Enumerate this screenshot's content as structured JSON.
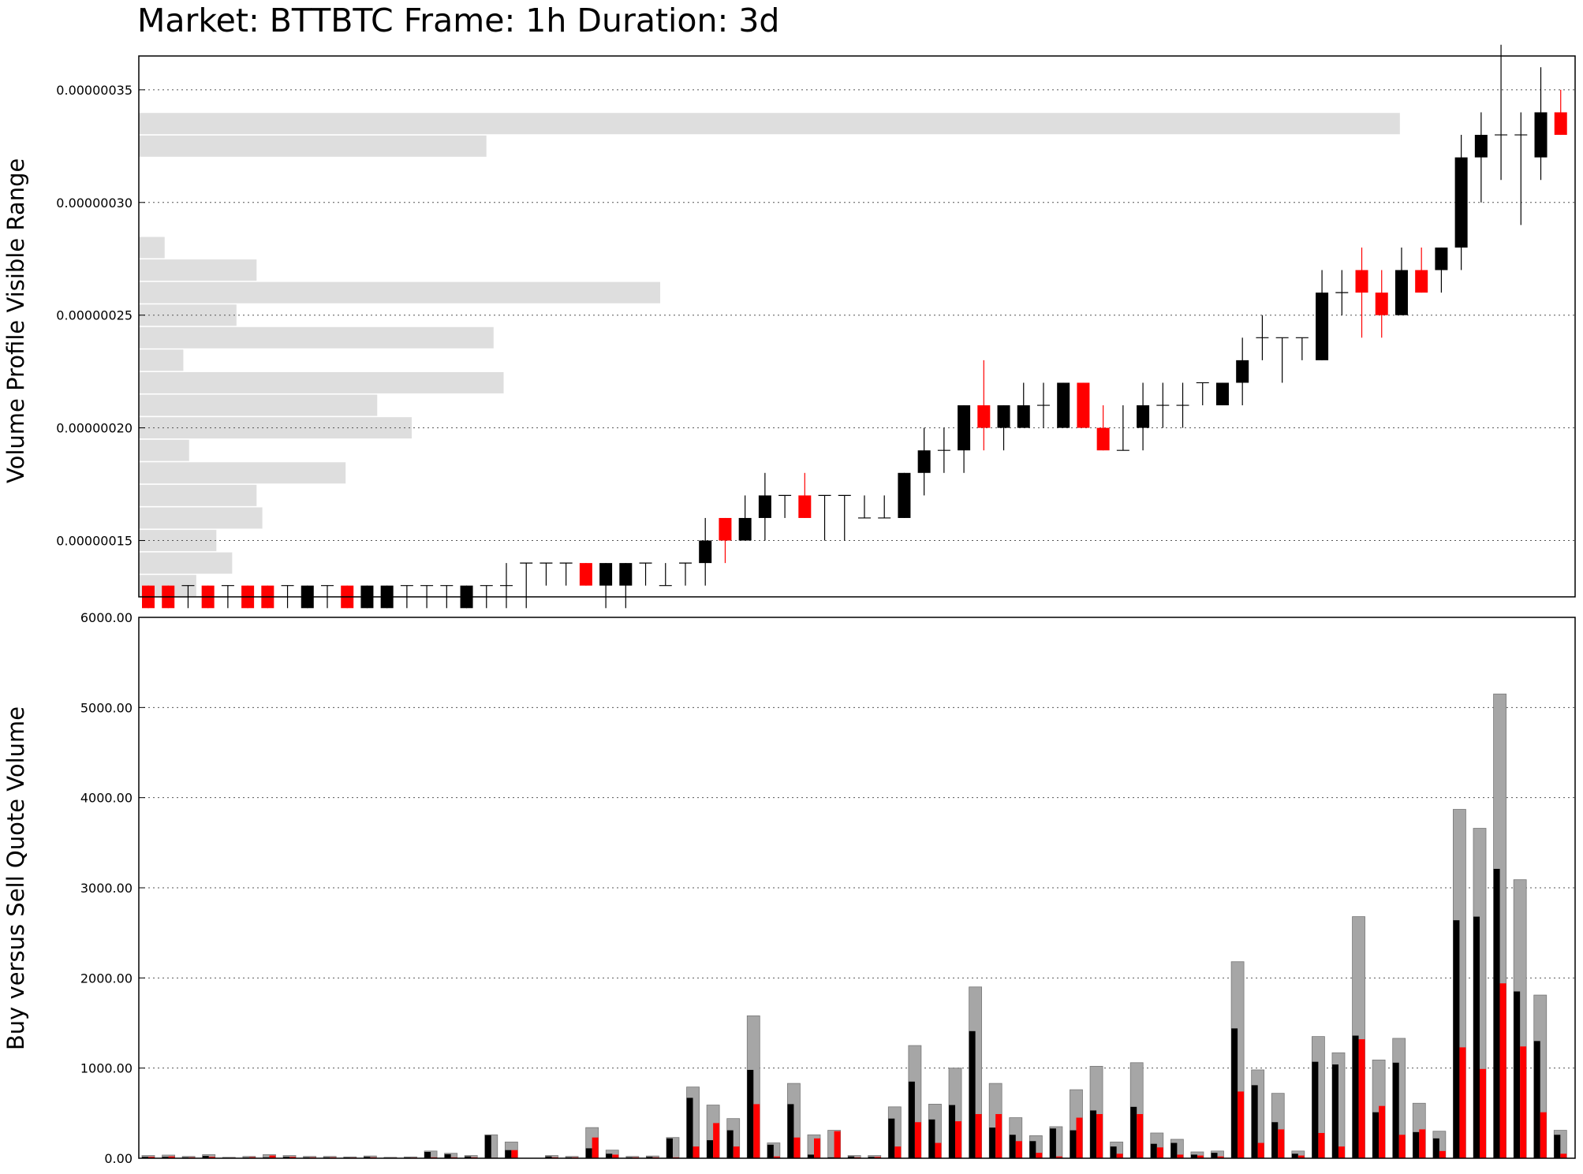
{
  "chart_data": [
    {
      "type": "candlestick",
      "title": "Market: BTTBTC Frame: 1h Duration: 3d",
      "ylabel": "Volume Profile Visible Range",
      "ylim": [
        1.25e-07,
        3.65e-07
      ],
      "yticks": [
        1.5e-07,
        2e-07,
        2.5e-07,
        3e-07,
        3.5e-07
      ],
      "ytick_labels": [
        "0.00000015",
        "0.00000020",
        "0.00000025",
        "0.00000030",
        "0.00000035"
      ],
      "grid": true,
      "candles": [
        {
          "o": 13,
          "h": 13,
          "l": 12,
          "c": 12
        },
        {
          "o": 13,
          "h": 13,
          "l": 12,
          "c": 12
        },
        {
          "o": 13,
          "h": 13,
          "l": 12,
          "c": 13
        },
        {
          "o": 13,
          "h": 13,
          "l": 12,
          "c": 12
        },
        {
          "o": 13,
          "h": 13,
          "l": 12,
          "c": 13
        },
        {
          "o": 13,
          "h": 13,
          "l": 12,
          "c": 12
        },
        {
          "o": 13,
          "h": 13,
          "l": 12,
          "c": 12
        },
        {
          "o": 13,
          "h": 13,
          "l": 12,
          "c": 13
        },
        {
          "o": 12,
          "h": 13,
          "l": 12,
          "c": 13
        },
        {
          "o": 13,
          "h": 13,
          "l": 12,
          "c": 13
        },
        {
          "o": 13,
          "h": 13,
          "l": 12,
          "c": 12
        },
        {
          "o": 12,
          "h": 13,
          "l": 12,
          "c": 13
        },
        {
          "o": 12,
          "h": 13,
          "l": 12,
          "c": 13
        },
        {
          "o": 13,
          "h": 13,
          "l": 12,
          "c": 13
        },
        {
          "o": 13,
          "h": 13,
          "l": 12,
          "c": 13
        },
        {
          "o": 13,
          "h": 13,
          "l": 12,
          "c": 13
        },
        {
          "o": 12,
          "h": 13,
          "l": 12,
          "c": 13
        },
        {
          "o": 13,
          "h": 13,
          "l": 12,
          "c": 13
        },
        {
          "o": 13,
          "h": 14,
          "l": 12,
          "c": 13
        },
        {
          "o": 14,
          "h": 14,
          "l": 12,
          "c": 14
        },
        {
          "o": 14,
          "h": 14,
          "l": 13,
          "c": 14
        },
        {
          "o": 14,
          "h": 14,
          "l": 13,
          "c": 14
        },
        {
          "o": 14,
          "h": 14,
          "l": 13,
          "c": 13
        },
        {
          "o": 13,
          "h": 14,
          "l": 12,
          "c": 14
        },
        {
          "o": 13,
          "h": 14,
          "l": 12,
          "c": 14
        },
        {
          "o": 14,
          "h": 14,
          "l": 13,
          "c": 14
        },
        {
          "o": 13,
          "h": 14,
          "l": 13,
          "c": 13
        },
        {
          "o": 14,
          "h": 14,
          "l": 13,
          "c": 14
        },
        {
          "o": 14,
          "h": 16,
          "l": 13,
          "c": 15
        },
        {
          "o": 16,
          "h": 16,
          "l": 14,
          "c": 15
        },
        {
          "o": 15,
          "h": 17,
          "l": 15,
          "c": 16
        },
        {
          "o": 16,
          "h": 18,
          "l": 15,
          "c": 17
        },
        {
          "o": 17,
          "h": 17,
          "l": 16,
          "c": 17
        },
        {
          "o": 17,
          "h": 18,
          "l": 16,
          "c": 16
        },
        {
          "o": 17,
          "h": 17,
          "l": 15,
          "c": 17
        },
        {
          "o": 17,
          "h": 17,
          "l": 15,
          "c": 17
        },
        {
          "o": 16,
          "h": 17,
          "l": 16,
          "c": 16
        },
        {
          "o": 16,
          "h": 17,
          "l": 16,
          "c": 16
        },
        {
          "o": 16,
          "h": 18,
          "l": 16,
          "c": 18
        },
        {
          "o": 18,
          "h": 20,
          "l": 17,
          "c": 19
        },
        {
          "o": 19,
          "h": 20,
          "l": 18,
          "c": 19
        },
        {
          "o": 19,
          "h": 21,
          "l": 18,
          "c": 21
        },
        {
          "o": 21,
          "h": 23,
          "l": 19,
          "c": 20
        },
        {
          "o": 20,
          "h": 21,
          "l": 19,
          "c": 21
        },
        {
          "o": 20,
          "h": 22,
          "l": 20,
          "c": 21
        },
        {
          "o": 21,
          "h": 22,
          "l": 20,
          "c": 21
        },
        {
          "o": 20,
          "h": 22,
          "l": 20,
          "c": 22
        },
        {
          "o": 22,
          "h": 22,
          "l": 20,
          "c": 20
        },
        {
          "o": 20,
          "h": 21,
          "l": 19,
          "c": 19
        },
        {
          "o": 19,
          "h": 21,
          "l": 19,
          "c": 19
        },
        {
          "o": 20,
          "h": 22,
          "l": 19,
          "c": 21
        },
        {
          "o": 21,
          "h": 22,
          "l": 20,
          "c": 21
        },
        {
          "o": 21,
          "h": 22,
          "l": 20,
          "c": 21
        },
        {
          "o": 22,
          "h": 22,
          "l": 21,
          "c": 22
        },
        {
          "o": 21,
          "h": 22,
          "l": 21,
          "c": 22
        },
        {
          "o": 22,
          "h": 24,
          "l": 21,
          "c": 23
        },
        {
          "o": 24,
          "h": 25,
          "l": 23,
          "c": 24
        },
        {
          "o": 24,
          "h": 24,
          "l": 22,
          "c": 24
        },
        {
          "o": 24,
          "h": 24,
          "l": 23,
          "c": 24
        },
        {
          "o": 23,
          "h": 27,
          "l": 23,
          "c": 26
        },
        {
          "o": 26,
          "h": 27,
          "l": 25,
          "c": 26
        },
        {
          "o": 27,
          "h": 28,
          "l": 24,
          "c": 26
        },
        {
          "o": 26,
          "h": 27,
          "l": 24,
          "c": 25
        },
        {
          "o": 25,
          "h": 28,
          "l": 25,
          "c": 27
        },
        {
          "o": 27,
          "h": 28,
          "l": 26,
          "c": 26
        },
        {
          "o": 27,
          "h": 28,
          "l": 26,
          "c": 28
        },
        {
          "o": 28,
          "h": 33,
          "l": 27,
          "c": 32
        },
        {
          "o": 32,
          "h": 34,
          "l": 30,
          "c": 33
        },
        {
          "o": 33,
          "h": 37,
          "l": 31,
          "c": 33
        },
        {
          "o": 33,
          "h": 34,
          "l": 29,
          "c": 33
        },
        {
          "o": 32,
          "h": 36,
          "l": 31,
          "c": 34
        },
        {
          "o": 34,
          "h": 35,
          "l": 33,
          "c": 33
        }
      ],
      "price_unit": 1e-08,
      "volume_profile": [
        {
          "price": 3.35e-07,
          "volume": 0.878
        },
        {
          "price": 3.25e-07,
          "volume": 0.242
        },
        {
          "price": 2.8e-07,
          "volume": 0.018
        },
        {
          "price": 2.7e-07,
          "volume": 0.082
        },
        {
          "price": 2.6e-07,
          "volume": 0.363
        },
        {
          "price": 2.5e-07,
          "volume": 0.068
        },
        {
          "price": 2.4e-07,
          "volume": 0.247
        },
        {
          "price": 2.3e-07,
          "volume": 0.031
        },
        {
          "price": 2.2e-07,
          "volume": 0.254
        },
        {
          "price": 2.1e-07,
          "volume": 0.166
        },
        {
          "price": 2e-07,
          "volume": 0.19
        },
        {
          "price": 1.9e-07,
          "volume": 0.035
        },
        {
          "price": 1.8e-07,
          "volume": 0.144
        },
        {
          "price": 1.7e-07,
          "volume": 0.082
        },
        {
          "price": 1.6e-07,
          "volume": 0.086
        },
        {
          "price": 1.5e-07,
          "volume": 0.054
        },
        {
          "price": 1.4e-07,
          "volume": 0.065
        },
        {
          "price": 1.3e-07,
          "volume": 0.04
        }
      ],
      "colors": {
        "up": "#000000",
        "down": "#ff0000",
        "profile": "#dedede"
      }
    },
    {
      "type": "bar",
      "ylabel": "Buy versus Sell Quote Volume",
      "ylim": [
        0,
        6000
      ],
      "yticks": [
        0,
        1000,
        2000,
        3000,
        4000,
        5000,
        6000
      ],
      "ytick_labels": [
        "0.00",
        "1000.00",
        "2000.00",
        "3000.00",
        "4000.00",
        "5000.00",
        "6000.00"
      ],
      "grid": true,
      "series": [
        {
          "key": "total",
          "color": "#a6a6a6"
        },
        {
          "key": "buy",
          "color": "#000000"
        },
        {
          "key": "sell",
          "color": "#ff0000"
        }
      ],
      "bars": [
        {
          "total": 30,
          "buy": 15,
          "sell": 15
        },
        {
          "total": 35,
          "buy": 15,
          "sell": 20
        },
        {
          "total": 20,
          "buy": 10,
          "sell": 10
        },
        {
          "total": 40,
          "buy": 25,
          "sell": 15
        },
        {
          "total": 10,
          "buy": 5,
          "sell": 5
        },
        {
          "total": 20,
          "buy": 8,
          "sell": 12
        },
        {
          "total": 40,
          "buy": 10,
          "sell": 30
        },
        {
          "total": 30,
          "buy": 15,
          "sell": 15
        },
        {
          "total": 20,
          "buy": 10,
          "sell": 10
        },
        {
          "total": 20,
          "buy": 10,
          "sell": 10
        },
        {
          "total": 15,
          "buy": 8,
          "sell": 7
        },
        {
          "total": 25,
          "buy": 15,
          "sell": 10
        },
        {
          "total": 10,
          "buy": 5,
          "sell": 5
        },
        {
          "total": 15,
          "buy": 8,
          "sell": 7
        },
        {
          "total": 80,
          "buy": 70,
          "sell": 10
        },
        {
          "total": 55,
          "buy": 45,
          "sell": 10
        },
        {
          "total": 30,
          "buy": 20,
          "sell": 10
        },
        {
          "total": 260,
          "buy": 255,
          "sell": 5
        },
        {
          "total": 180,
          "buy": 90,
          "sell": 90
        },
        {
          "total": 0,
          "buy": 0,
          "sell": 0
        },
        {
          "total": 30,
          "buy": 20,
          "sell": 10
        },
        {
          "total": 20,
          "buy": 10,
          "sell": 10
        },
        {
          "total": 340,
          "buy": 110,
          "sell": 230
        },
        {
          "total": 90,
          "buy": 50,
          "sell": 40
        },
        {
          "total": 20,
          "buy": 10,
          "sell": 10
        },
        {
          "total": 25,
          "buy": 15,
          "sell": 10
        },
        {
          "total": 230,
          "buy": 220,
          "sell": 10
        },
        {
          "total": 790,
          "buy": 670,
          "sell": 130
        },
        {
          "total": 590,
          "buy": 200,
          "sell": 390
        },
        {
          "total": 440,
          "buy": 310,
          "sell": 130
        },
        {
          "total": 1580,
          "buy": 980,
          "sell": 600
        },
        {
          "total": 170,
          "buy": 150,
          "sell": 20
        },
        {
          "total": 830,
          "buy": 600,
          "sell": 230
        },
        {
          "total": 260,
          "buy": 40,
          "sell": 220
        },
        {
          "total": 310,
          "buy": 10,
          "sell": 300
        },
        {
          "total": 30,
          "buy": 20,
          "sell": 10
        },
        {
          "total": 30,
          "buy": 15,
          "sell": 15
        },
        {
          "total": 570,
          "buy": 440,
          "sell": 130
        },
        {
          "total": 1250,
          "buy": 850,
          "sell": 400
        },
        {
          "total": 600,
          "buy": 430,
          "sell": 170
        },
        {
          "total": 1000,
          "buy": 590,
          "sell": 410
        },
        {
          "total": 1900,
          "buy": 1410,
          "sell": 490
        },
        {
          "total": 830,
          "buy": 340,
          "sell": 490
        },
        {
          "total": 450,
          "buy": 260,
          "sell": 190
        },
        {
          "total": 250,
          "buy": 190,
          "sell": 60
        },
        {
          "total": 350,
          "buy": 330,
          "sell": 20
        },
        {
          "total": 760,
          "buy": 310,
          "sell": 450
        },
        {
          "total": 1020,
          "buy": 530,
          "sell": 490
        },
        {
          "total": 180,
          "buy": 130,
          "sell": 50
        },
        {
          "total": 1060,
          "buy": 570,
          "sell": 490
        },
        {
          "total": 280,
          "buy": 160,
          "sell": 120
        },
        {
          "total": 210,
          "buy": 170,
          "sell": 40
        },
        {
          "total": 70,
          "buy": 40,
          "sell": 30
        },
        {
          "total": 80,
          "buy": 60,
          "sell": 20
        },
        {
          "total": 2180,
          "buy": 1440,
          "sell": 740
        },
        {
          "total": 980,
          "buy": 810,
          "sell": 170
        },
        {
          "total": 720,
          "buy": 400,
          "sell": 320
        },
        {
          "total": 80,
          "buy": 50,
          "sell": 30
        },
        {
          "total": 1350,
          "buy": 1070,
          "sell": 280
        },
        {
          "total": 1170,
          "buy": 1040,
          "sell": 130
        },
        {
          "total": 2680,
          "buy": 1360,
          "sell": 1320
        },
        {
          "total": 1090,
          "buy": 510,
          "sell": 580
        },
        {
          "total": 1330,
          "buy": 1060,
          "sell": 260
        },
        {
          "total": 610,
          "buy": 290,
          "sell": 320
        },
        {
          "total": 300,
          "buy": 220,
          "sell": 80
        },
        {
          "total": 3870,
          "buy": 2640,
          "sell": 1230
        },
        {
          "total": 3660,
          "buy": 2680,
          "sell": 990
        },
        {
          "total": 5150,
          "buy": 3210,
          "sell": 1940
        },
        {
          "total": 3090,
          "buy": 1850,
          "sell": 1240
        },
        {
          "total": 1810,
          "buy": 1300,
          "sell": 510
        },
        {
          "total": 310,
          "buy": 260,
          "sell": 50
        }
      ]
    }
  ]
}
